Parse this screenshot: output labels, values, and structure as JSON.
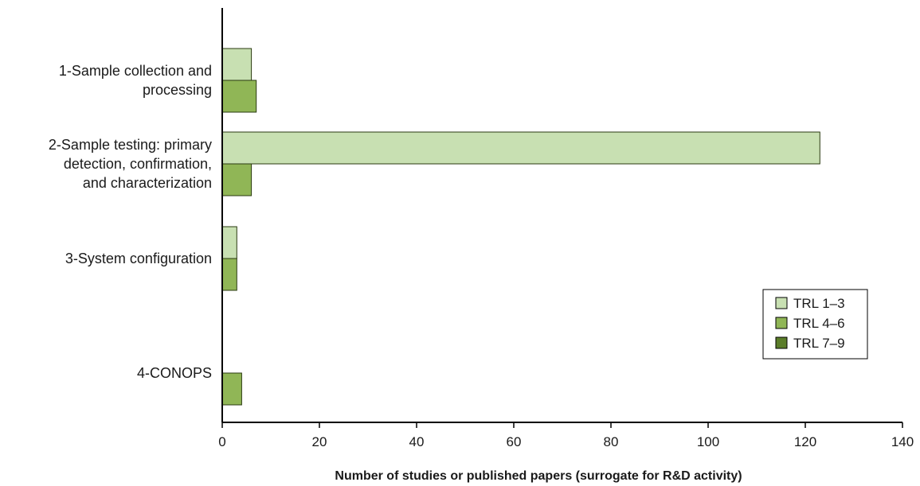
{
  "chart_data": {
    "type": "bar",
    "orientation": "horizontal",
    "title": "",
    "xlabel": "Number of studies or published papers (surrogate for R&D activity)",
    "ylabel": "",
    "xlim": [
      0,
      140
    ],
    "x_ticks": [
      0,
      20,
      40,
      60,
      80,
      100,
      120,
      140
    ],
    "categories": [
      [
        "1-Sample collection and",
        "processing"
      ],
      [
        "2-Sample testing: primary",
        "detection, confirmation,",
        "and characterization"
      ],
      [
        "3-System configuration"
      ],
      [
        "4-CONOPS"
      ]
    ],
    "series": [
      {
        "name": "TRL 1–3",
        "color": "#c8e0b2",
        "values": [
          6,
          123,
          3,
          0
        ]
      },
      {
        "name": "TRL 4–6",
        "color": "#90b656",
        "values": [
          7,
          6,
          3,
          4
        ]
      },
      {
        "name": "TRL 7–9",
        "color": "#5b7d2a",
        "values": [
          0,
          0,
          0,
          0
        ]
      }
    ],
    "grid": false,
    "legend_position": "right"
  }
}
